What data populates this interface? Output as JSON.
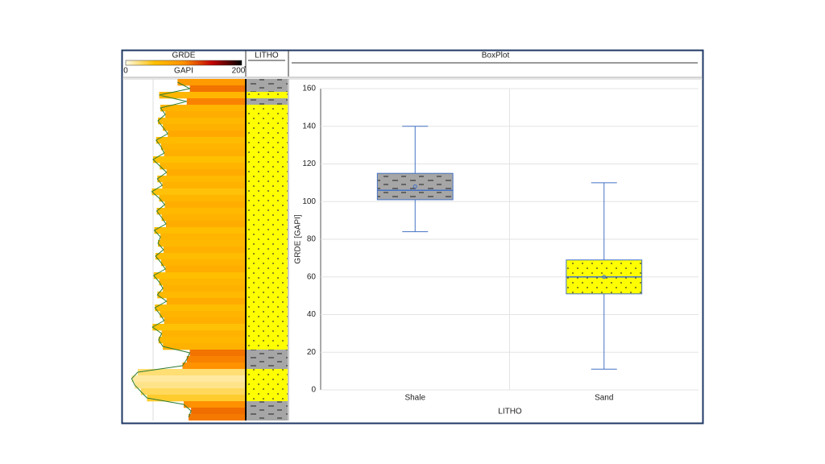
{
  "chart_data": [
    {
      "type": "log",
      "title": "GRDE",
      "unit": "GAPI",
      "xlim": [
        0,
        200
      ],
      "xticks": [
        0,
        200
      ],
      "colorscale": [
        "#fffbe6",
        "#ffc000",
        "#ff9000",
        "#c00000",
        "#000000"
      ],
      "line_color": "#2e7d32",
      "litho_title": "LITHO",
      "values": [
        90,
        110,
        60,
        105,
        62,
        70,
        58,
        66,
        74,
        55,
        63,
        68,
        50,
        61,
        72,
        57,
        65,
        48,
        60,
        69,
        56,
        64,
        71,
        52,
        62,
        58,
        67,
        54,
        63,
        70,
        51,
        60,
        66,
        57,
        72,
        53,
        61,
        68,
        49,
        64,
        59,
        66,
        110,
        105,
        98,
        25,
        15,
        20,
        30,
        40,
        100,
        112,
        108
      ],
      "litho": [
        "Shale",
        "Shale",
        "Sand",
        "Shale",
        "Sand",
        "Sand",
        "Sand",
        "Sand",
        "Sand",
        "Sand",
        "Sand",
        "Sand",
        "Sand",
        "Sand",
        "Sand",
        "Sand",
        "Sand",
        "Sand",
        "Sand",
        "Sand",
        "Sand",
        "Sand",
        "Sand",
        "Sand",
        "Sand",
        "Sand",
        "Sand",
        "Sand",
        "Sand",
        "Sand",
        "Sand",
        "Sand",
        "Sand",
        "Sand",
        "Sand",
        "Sand",
        "Sand",
        "Sand",
        "Sand",
        "Sand",
        "Sand",
        "Sand",
        "Shale",
        "Shale",
        "Shale",
        "Sand",
        "Sand",
        "Sand",
        "Sand",
        "Sand",
        "Shale",
        "Shale",
        "Shale"
      ]
    },
    {
      "type": "box",
      "title": "BoxPlot",
      "xlabel": "LITHO",
      "ylabel": "GRDE [GAPI]",
      "categories": [
        "Shale",
        "Sand"
      ],
      "colors": [
        "#a6a6a6",
        "#ffff00"
      ],
      "whisker_color": "#4472c4",
      "min": [
        84,
        11
      ],
      "q1": [
        101,
        51
      ],
      "median": [
        106,
        60
      ],
      "q3": [
        115,
        69
      ],
      "max": [
        140,
        110
      ],
      "mean": [
        108,
        60
      ],
      "ylim": [
        0,
        160
      ],
      "yticks": [
        0,
        20,
        40,
        60,
        80,
        100,
        120,
        140,
        160
      ],
      "grid": true
    }
  ]
}
